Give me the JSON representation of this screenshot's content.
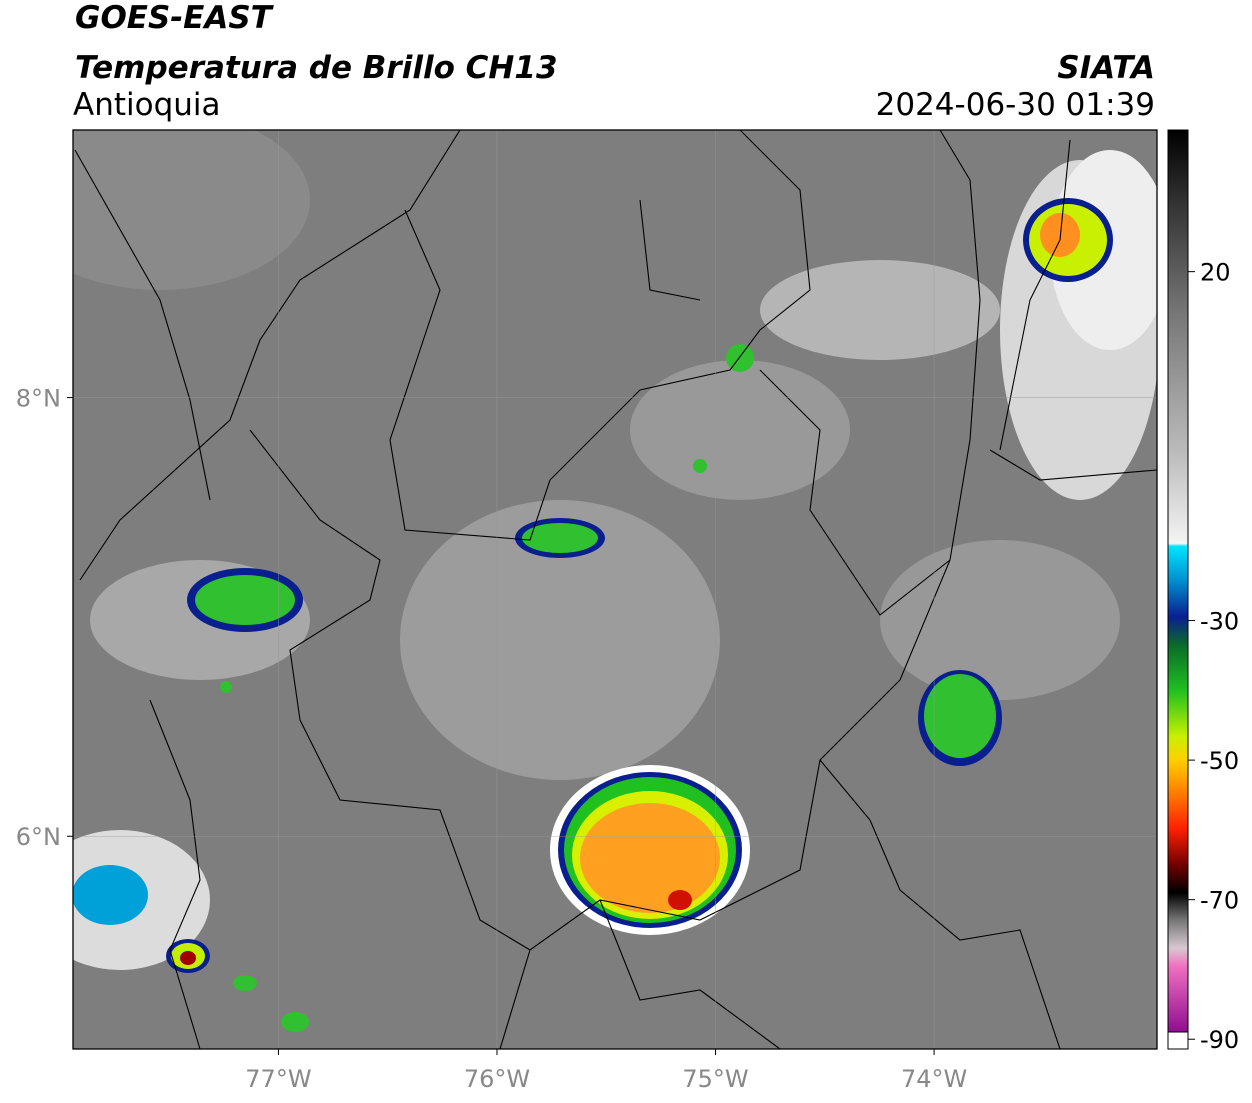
{
  "header": {
    "title": "GOES-EAST",
    "subtitle": "Temperatura de Brillo CH13",
    "region": "Antioquia",
    "source": "SIATA",
    "datetime": "2024-06-30 01:39"
  },
  "map": {
    "lon_range": [
      -77.94,
      -72.98
    ],
    "lat_range": [
      5.03,
      9.22
    ],
    "lon_ticks": [
      {
        "value": -77,
        "label": "77°W"
      },
      {
        "value": -76,
        "label": "76°W"
      },
      {
        "value": -75,
        "label": "75°W"
      },
      {
        "value": -74,
        "label": "74°W"
      }
    ],
    "lat_ticks": [
      {
        "value": 8,
        "label": "8°N"
      },
      {
        "value": 6,
        "label": "6°N"
      }
    ]
  },
  "colorbar": {
    "range": [
      -91.4,
      40.3
    ],
    "ticks": [
      20,
      -30,
      -50,
      -70,
      -90
    ]
  }
}
